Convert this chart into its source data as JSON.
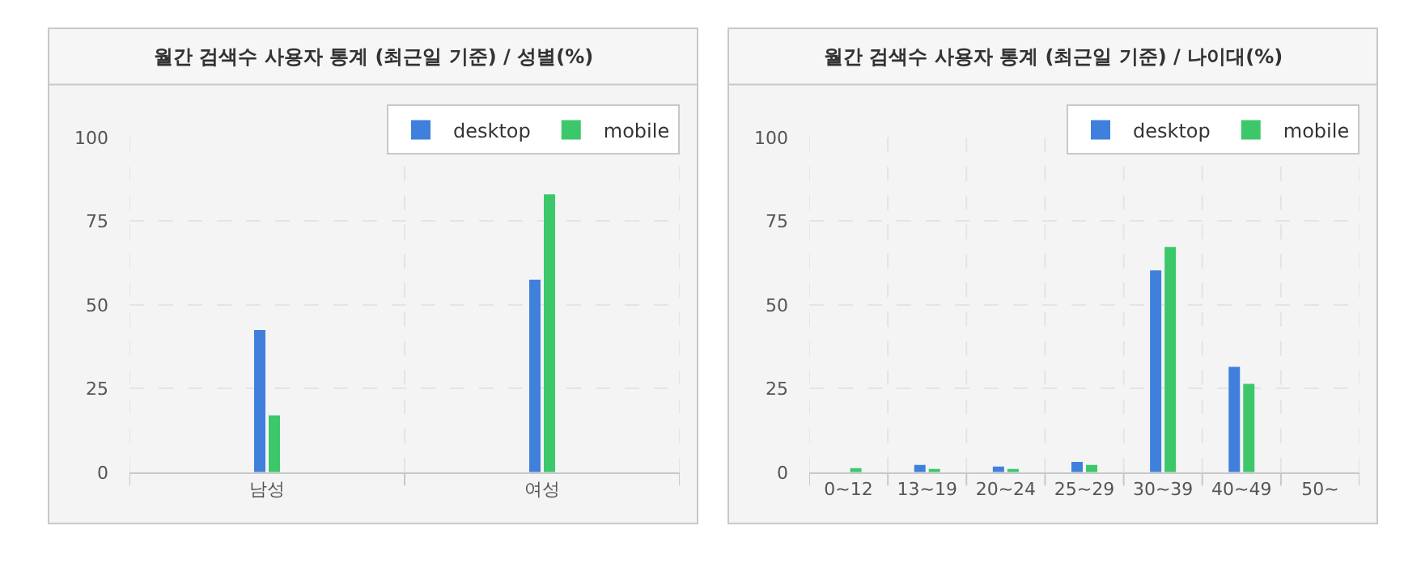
{
  "chart_data": [
    {
      "type": "bar",
      "title": "월간 검색수 사용자 통계 (최근일 기준) / 성별(%)",
      "categories": [
        "남성",
        "여성"
      ],
      "series": [
        {
          "name": "desktop",
          "color": "#4080dc",
          "values": [
            42.5,
            57.5
          ]
        },
        {
          "name": "mobile",
          "color": "#3cc86a",
          "values": [
            17,
            83
          ]
        }
      ],
      "ylim": [
        0,
        100
      ],
      "yticks": [
        0,
        25,
        50,
        75,
        100
      ],
      "grid": true,
      "legend": "top right"
    },
    {
      "type": "bar",
      "title": "월간 검색수 사용자 통계 (최근일 기준) / 나이대(%)",
      "categories": [
        "0~12",
        "13~19",
        "20~24",
        "25~29",
        "30~39",
        "40~49",
        "50~"
      ],
      "series": [
        {
          "name": "desktop",
          "color": "#4080dc",
          "values": [
            0,
            2.2,
            1.7,
            3.1,
            60.3,
            31.5,
            0
          ]
        },
        {
          "name": "mobile",
          "color": "#3cc86a",
          "values": [
            1.2,
            0.8,
            0.8,
            2.2,
            67.3,
            26.4,
            0
          ]
        }
      ],
      "ylim": [
        0,
        100
      ],
      "yticks": [
        0,
        25,
        50,
        75,
        100
      ],
      "grid": true,
      "legend": "top right"
    }
  ]
}
